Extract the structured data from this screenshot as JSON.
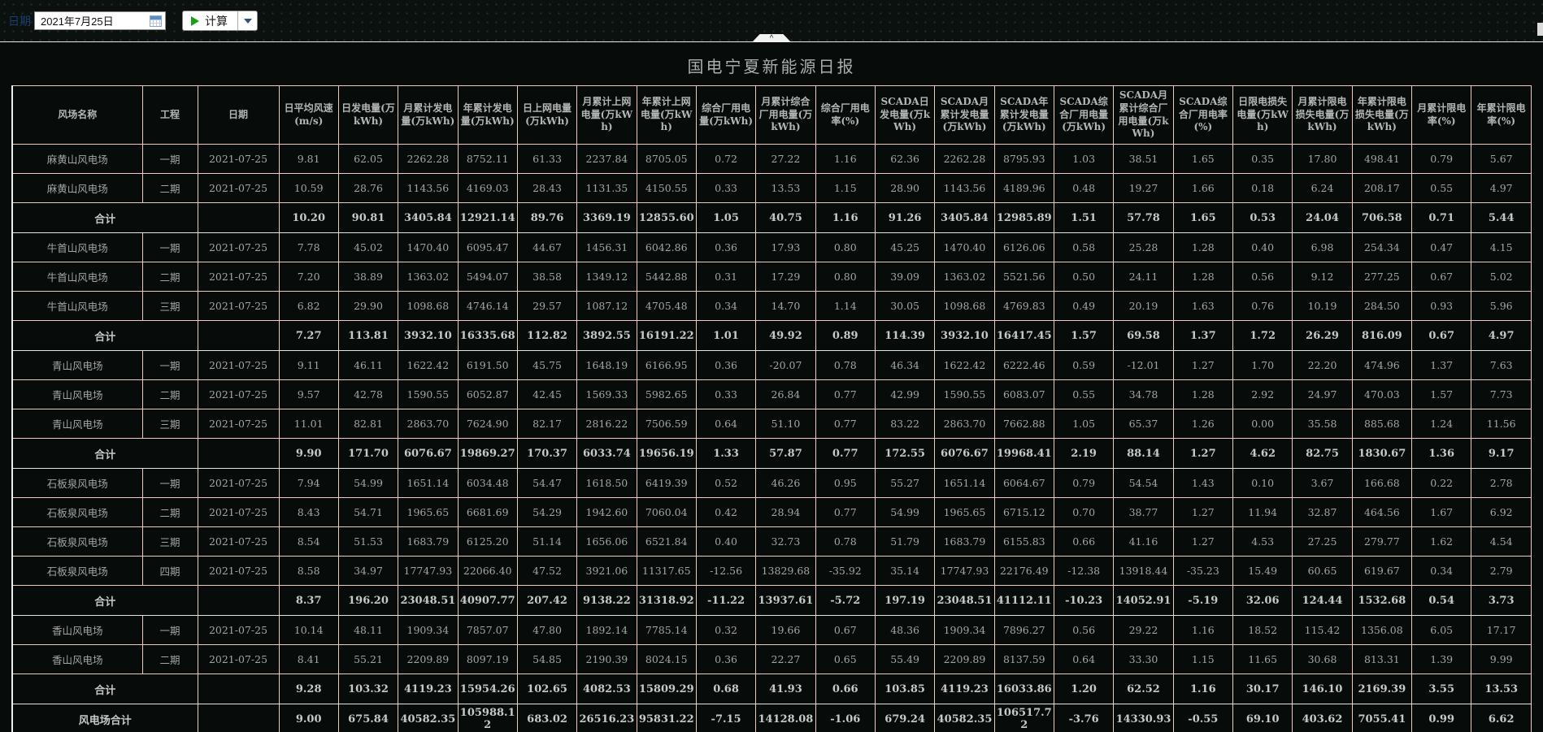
{
  "toolbar": {
    "date_label": "日期",
    "date_value": "2021年7月25日",
    "calc_label": "计算"
  },
  "panel": {
    "title": "国电宁夏新能源日报"
  },
  "colors": {
    "cell_border": "#eec9c1",
    "total_row_border": "#e4e6e4",
    "play_green": "#17a017",
    "caret_blue": "#30527d",
    "date_label_blue": "#1c3d72",
    "title_gray": "#a9afab"
  },
  "table": {
    "headers": [
      "风场名称",
      "工程",
      "日期",
      "日平均风速(m/s)",
      "日发电量(万kWh)",
      "月累计发电量(万kWh)",
      "年累计发电量(万kWh)",
      "日上网电量(万kWh)",
      "月累计上网电量(万kWh)",
      "年累计上网电量(万kWh)",
      "综合厂用电量(万kWh)",
      "月累计综合厂用电量(万kWh)",
      "综合厂用电率(%)",
      "SCADA日发电量(万kWh)",
      "SCADA月累计发电量(万kWh)",
      "SCADA年累计发电量(万kWh)",
      "SCADA综合厂用电量(万kWh)",
      "SCADA月累计综合厂用电量(万kWh)",
      "SCADA综合厂用电率(%)",
      "日限电损失电量(万kWh)",
      "月累计限电损失电量(万kWh)",
      "年累计限电损失电量(万kWh)",
      "月累计限电率(%)",
      "年累计限电率(%)"
    ],
    "rows": [
      {
        "type": "data",
        "farm": "麻黄山风电场",
        "project": "一期",
        "date": "2021-07-25",
        "values": [
          "9.81",
          "62.05",
          "2262.28",
          "8752.11",
          "61.33",
          "2237.84",
          "8705.05",
          "0.72",
          "27.22",
          "1.16",
          "62.36",
          "2262.28",
          "8795.93",
          "1.03",
          "38.51",
          "1.65",
          "0.35",
          "17.80",
          "498.41",
          "0.79",
          "5.67"
        ]
      },
      {
        "type": "data",
        "farm": "麻黄山风电场",
        "project": "二期",
        "date": "2021-07-25",
        "values": [
          "10.59",
          "28.76",
          "1143.56",
          "4169.03",
          "28.43",
          "1131.35",
          "4150.55",
          "0.33",
          "13.53",
          "1.15",
          "28.90",
          "1143.56",
          "4189.96",
          "0.48",
          "19.27",
          "1.66",
          "0.18",
          "6.24",
          "208.17",
          "0.55",
          "4.97"
        ]
      },
      {
        "type": "subtotal",
        "label": "合计",
        "values": [
          "10.20",
          "90.81",
          "3405.84",
          "12921.14",
          "89.76",
          "3369.19",
          "12855.60",
          "1.05",
          "40.75",
          "1.16",
          "91.26",
          "3405.84",
          "12985.89",
          "1.51",
          "57.78",
          "1.65",
          "0.53",
          "24.04",
          "706.58",
          "0.71",
          "5.44"
        ]
      },
      {
        "type": "data",
        "farm": "牛首山风电场",
        "project": "一期",
        "date": "2021-07-25",
        "values": [
          "7.78",
          "45.02",
          "1470.40",
          "6095.47",
          "44.67",
          "1456.31",
          "6042.86",
          "0.36",
          "17.93",
          "0.80",
          "45.25",
          "1470.40",
          "6126.06",
          "0.58",
          "25.28",
          "1.28",
          "0.40",
          "6.98",
          "254.34",
          "0.47",
          "4.15"
        ]
      },
      {
        "type": "data",
        "farm": "牛首山风电场",
        "project": "二期",
        "date": "2021-07-25",
        "values": [
          "7.20",
          "38.89",
          "1363.02",
          "5494.07",
          "38.58",
          "1349.12",
          "5442.88",
          "0.31",
          "17.29",
          "0.80",
          "39.09",
          "1363.02",
          "5521.56",
          "0.50",
          "24.11",
          "1.28",
          "0.56",
          "9.12",
          "277.25",
          "0.67",
          "5.02"
        ]
      },
      {
        "type": "data",
        "farm": "牛首山风电场",
        "project": "三期",
        "date": "2021-07-25",
        "values": [
          "6.82",
          "29.90",
          "1098.68",
          "4746.14",
          "29.57",
          "1087.12",
          "4705.48",
          "0.34",
          "14.70",
          "1.14",
          "30.05",
          "1098.68",
          "4769.83",
          "0.49",
          "20.19",
          "1.63",
          "0.76",
          "10.19",
          "284.50",
          "0.93",
          "5.96"
        ]
      },
      {
        "type": "subtotal",
        "label": "合计",
        "values": [
          "7.27",
          "113.81",
          "3932.10",
          "16335.68",
          "112.82",
          "3892.55",
          "16191.22",
          "1.01",
          "49.92",
          "0.89",
          "114.39",
          "3932.10",
          "16417.45",
          "1.57",
          "69.58",
          "1.37",
          "1.72",
          "26.29",
          "816.09",
          "0.67",
          "4.97"
        ]
      },
      {
        "type": "data",
        "farm": "青山风电场",
        "project": "一期",
        "date": "2021-07-25",
        "values": [
          "9.11",
          "46.11",
          "1622.42",
          "6191.50",
          "45.75",
          "1648.19",
          "6166.95",
          "0.36",
          "-20.07",
          "0.78",
          "46.34",
          "1622.42",
          "6222.46",
          "0.59",
          "-12.01",
          "1.27",
          "1.70",
          "22.20",
          "474.96",
          "1.37",
          "7.63"
        ]
      },
      {
        "type": "data",
        "farm": "青山风电场",
        "project": "二期",
        "date": "2021-07-25",
        "values": [
          "9.57",
          "42.78",
          "1590.55",
          "6052.87",
          "42.45",
          "1569.33",
          "5982.65",
          "0.33",
          "26.84",
          "0.77",
          "42.99",
          "1590.55",
          "6083.07",
          "0.55",
          "34.78",
          "1.28",
          "2.92",
          "24.97",
          "470.03",
          "1.57",
          "7.73"
        ]
      },
      {
        "type": "data",
        "farm": "青山风电场",
        "project": "三期",
        "date": "2021-07-25",
        "values": [
          "11.01",
          "82.81",
          "2863.70",
          "7624.90",
          "82.17",
          "2816.22",
          "7506.59",
          "0.64",
          "51.10",
          "0.77",
          "83.22",
          "2863.70",
          "7662.88",
          "1.05",
          "65.37",
          "1.26",
          "0.00",
          "35.58",
          "885.68",
          "1.24",
          "11.56"
        ]
      },
      {
        "type": "subtotal",
        "label": "合计",
        "values": [
          "9.90",
          "171.70",
          "6076.67",
          "19869.27",
          "170.37",
          "6033.74",
          "19656.19",
          "1.33",
          "57.87",
          "0.77",
          "172.55",
          "6076.67",
          "19968.41",
          "2.19",
          "88.14",
          "1.27",
          "4.62",
          "82.75",
          "1830.67",
          "1.36",
          "9.17"
        ]
      },
      {
        "type": "data",
        "farm": "石板泉风电场",
        "project": "一期",
        "date": "2021-07-25",
        "values": [
          "7.94",
          "54.99",
          "1651.14",
          "6034.48",
          "54.47",
          "1618.50",
          "6419.39",
          "0.52",
          "46.26",
          "0.95",
          "55.27",
          "1651.14",
          "6064.67",
          "0.79",
          "54.54",
          "1.43",
          "0.10",
          "3.67",
          "166.68",
          "0.22",
          "2.78"
        ]
      },
      {
        "type": "data",
        "farm": "石板泉风电场",
        "project": "二期",
        "date": "2021-07-25",
        "values": [
          "8.43",
          "54.71",
          "1965.65",
          "6681.69",
          "54.29",
          "1942.60",
          "7060.04",
          "0.42",
          "28.94",
          "0.77",
          "54.99",
          "1965.65",
          "6715.12",
          "0.70",
          "38.77",
          "1.27",
          "11.94",
          "32.87",
          "464.56",
          "1.67",
          "6.92"
        ]
      },
      {
        "type": "data",
        "farm": "石板泉风电场",
        "project": "三期",
        "date": "2021-07-25",
        "values": [
          "8.54",
          "51.53",
          "1683.79",
          "6125.20",
          "51.14",
          "1656.06",
          "6521.84",
          "0.40",
          "32.73",
          "0.78",
          "51.79",
          "1683.79",
          "6155.83",
          "0.66",
          "41.16",
          "1.27",
          "4.53",
          "27.25",
          "279.77",
          "1.62",
          "4.54"
        ]
      },
      {
        "type": "data",
        "farm": "石板泉风电场",
        "project": "四期",
        "date": "2021-07-25",
        "values": [
          "8.58",
          "34.97",
          "17747.93",
          "22066.40",
          "47.52",
          "3921.06",
          "11317.65",
          "-12.56",
          "13829.68",
          "-35.92",
          "35.14",
          "17747.93",
          "22176.49",
          "-12.38",
          "13918.44",
          "-35.23",
          "15.49",
          "60.65",
          "619.67",
          "0.34",
          "2.79"
        ]
      },
      {
        "type": "subtotal",
        "label": "合计",
        "values": [
          "8.37",
          "196.20",
          "23048.51",
          "40907.77",
          "207.42",
          "9138.22",
          "31318.92",
          "-11.22",
          "13937.61",
          "-5.72",
          "197.19",
          "23048.51",
          "41112.11",
          "-10.23",
          "14052.91",
          "-5.19",
          "32.06",
          "124.44",
          "1532.68",
          "0.54",
          "3.73"
        ]
      },
      {
        "type": "data",
        "farm": "香山风电场",
        "project": "一期",
        "date": "2021-07-25",
        "values": [
          "10.14",
          "48.11",
          "1909.34",
          "7857.07",
          "47.80",
          "1892.14",
          "7785.14",
          "0.32",
          "19.66",
          "0.67",
          "48.36",
          "1909.34",
          "7896.27",
          "0.56",
          "29.22",
          "1.16",
          "18.52",
          "115.42",
          "1356.08",
          "6.05",
          "17.17"
        ]
      },
      {
        "type": "data",
        "farm": "香山风电场",
        "project": "二期",
        "date": "2021-07-25",
        "values": [
          "8.41",
          "55.21",
          "2209.89",
          "8097.19",
          "54.85",
          "2190.39",
          "8024.15",
          "0.36",
          "22.27",
          "0.65",
          "55.49",
          "2209.89",
          "8137.59",
          "0.64",
          "33.30",
          "1.15",
          "11.65",
          "30.68",
          "813.31",
          "1.39",
          "9.99"
        ]
      },
      {
        "type": "subtotal",
        "label": "合计",
        "values": [
          "9.28",
          "103.32",
          "4119.23",
          "15954.26",
          "102.65",
          "4082.53",
          "15809.29",
          "0.68",
          "41.93",
          "0.66",
          "103.85",
          "4119.23",
          "16033.86",
          "1.20",
          "62.52",
          "1.16",
          "30.17",
          "146.10",
          "2169.39",
          "3.55",
          "13.53"
        ]
      },
      {
        "type": "grand",
        "label": "风电场合计",
        "values": [
          "9.00",
          "675.84",
          "40582.35",
          "105988.12",
          "683.02",
          "26516.23",
          "95831.22",
          "-7.15",
          "14128.08",
          "-1.06",
          "679.24",
          "40582.35",
          "106517.72",
          "-3.76",
          "14330.93",
          "-0.55",
          "69.10",
          "403.62",
          "7055.41",
          "0.99",
          "6.62"
        ]
      }
    ]
  }
}
